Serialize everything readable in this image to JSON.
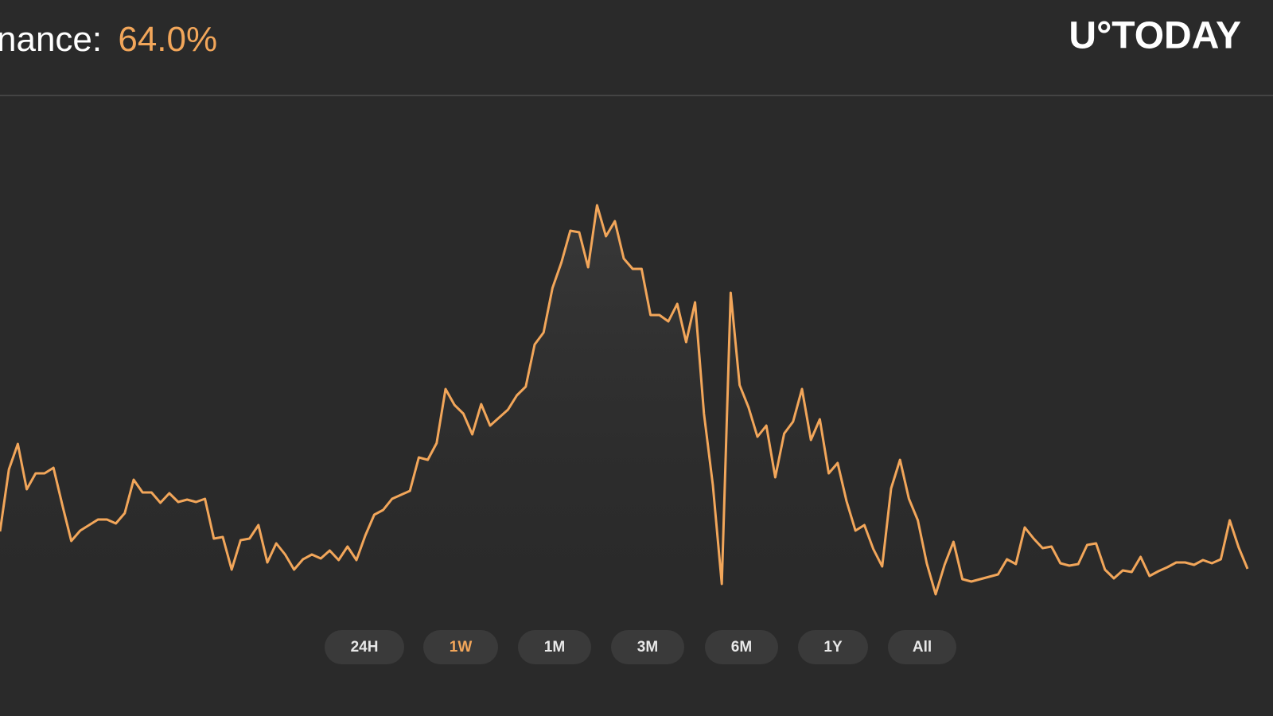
{
  "chart_data": {
    "type": "line",
    "title": "nance:",
    "headline": "64.0%",
    "logo": "U°TODAY",
    "color": "#f2a65a",
    "ylim": [
      0,
      900
    ],
    "range_buttons": [
      "24H",
      "1W",
      "1M",
      "3M",
      "6M",
      "1Y",
      "All"
    ],
    "selected_range": "1W",
    "values": [
      232,
      310,
      342,
      285,
      305,
      305,
      312,
      265,
      220,
      233,
      240,
      247,
      247,
      242,
      255,
      297,
      281,
      281,
      268,
      280,
      269,
      272,
      269,
      273,
      223,
      225,
      184,
      221,
      223,
      240,
      193,
      217,
      203,
      184,
      197,
      203,
      198,
      208,
      196,
      213,
      196,
      227,
      253,
      259,
      273,
      278,
      283,
      325,
      322,
      343,
      411,
      391,
      380,
      354,
      392,
      365,
      375,
      385,
      403,
      414,
      467,
      482,
      538,
      570,
      610,
      608,
      564,
      642,
      603,
      622,
      575,
      562,
      562,
      504,
      504,
      496,
      518,
      470,
      520,
      380,
      290,
      166,
      532,
      416,
      388,
      351,
      365,
      300,
      355,
      370,
      411,
      347,
      373,
      305,
      318,
      270,
      233,
      240,
      210,
      188,
      286,
      322,
      273,
      246,
      192,
      153,
      190,
      219,
      172,
      169,
      172,
      175,
      178,
      197,
      191,
      237,
      223,
      211,
      213,
      192,
      189,
      191,
      215,
      217,
      184,
      173,
      183,
      181,
      200,
      176,
      182,
      187,
      193,
      193,
      190,
      196,
      192,
      197,
      246,
      212,
      185
    ]
  }
}
